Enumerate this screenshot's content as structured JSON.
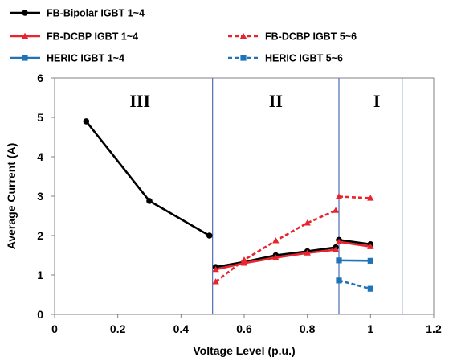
{
  "chart_data": {
    "type": "line",
    "xlabel": "Voltage Level (p.u.)",
    "ylabel": "Average Current (A)",
    "xlim": [
      0,
      1.2
    ],
    "ylim": [
      0,
      6
    ],
    "x_ticks": [
      "0",
      "0.2",
      "0.4",
      "0.6",
      "0.8",
      "1",
      "1.2"
    ],
    "y_ticks": [
      "0",
      "1",
      "2",
      "3",
      "4",
      "5",
      "6"
    ],
    "grid": false,
    "legend_placement": "top",
    "region_boundaries_x": [
      0.5,
      0.9,
      1.1
    ],
    "regions": [
      {
        "label": "III",
        "x": 0.27
      },
      {
        "label": "II",
        "x": 0.7
      },
      {
        "label": "I",
        "x": 1.02
      }
    ],
    "series": [
      {
        "name": "FB-Bipolar IGBT 1~4",
        "color": "#000000",
        "style": "solid",
        "marker": "circle",
        "points": [
          [
            0.1,
            4.9
          ],
          [
            0.3,
            2.88
          ],
          [
            0.49,
            2.0
          ],
          [
            0.51,
            1.2
          ],
          [
            0.6,
            1.33
          ],
          [
            0.7,
            1.5
          ],
          [
            0.8,
            1.6
          ],
          [
            0.89,
            1.7
          ],
          [
            0.9,
            1.89
          ],
          [
            1.0,
            1.78
          ]
        ]
      },
      {
        "name": "FB-DCBP  IGBT 1~4",
        "color": "#e8242e",
        "style": "solid",
        "marker": "triangle",
        "points": [
          [
            0.51,
            1.14
          ],
          [
            0.6,
            1.3
          ],
          [
            0.7,
            1.44
          ],
          [
            0.8,
            1.56
          ],
          [
            0.89,
            1.64
          ],
          [
            0.9,
            1.84
          ],
          [
            1.0,
            1.72
          ]
        ]
      },
      {
        "name": "FB-DCBP  IGBT 5~6",
        "color": "#e8242e",
        "style": "dashed",
        "marker": "triangle",
        "points": [
          [
            0.51,
            0.83
          ],
          [
            0.6,
            1.38
          ],
          [
            0.7,
            1.87
          ],
          [
            0.8,
            2.32
          ],
          [
            0.89,
            2.64
          ],
          [
            0.9,
            2.99
          ],
          [
            1.0,
            2.95
          ]
        ]
      },
      {
        "name": "HERIC  IGBT 1~4",
        "color": "#1f73b7",
        "style": "solid",
        "marker": "square",
        "points": [
          [
            0.9,
            1.37
          ],
          [
            1.0,
            1.36
          ]
        ]
      },
      {
        "name": "HERIC  IGBT 5~6",
        "color": "#1f73b7",
        "style": "dashed",
        "marker": "square",
        "points": [
          [
            0.9,
            0.86
          ],
          [
            1.0,
            0.65
          ]
        ]
      }
    ]
  }
}
